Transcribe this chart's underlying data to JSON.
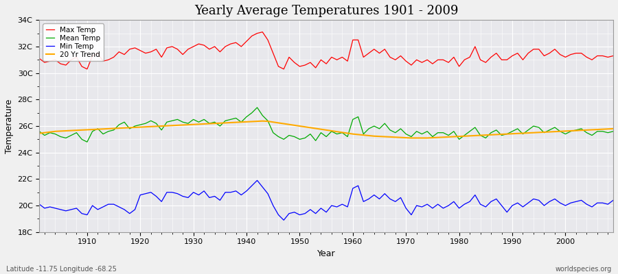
{
  "title": "Yearly Average Temperatures 1901 - 2009",
  "xlabel": "Year",
  "ylabel": "Temperature",
  "subtitle_left": "Latitude -11.75 Longitude -68.25",
  "subtitle_right": "worldspecies.org",
  "years": [
    1901,
    1902,
    1903,
    1904,
    1905,
    1906,
    1907,
    1908,
    1909,
    1910,
    1911,
    1912,
    1913,
    1914,
    1915,
    1916,
    1917,
    1918,
    1919,
    1920,
    1921,
    1922,
    1923,
    1924,
    1925,
    1926,
    1927,
    1928,
    1929,
    1930,
    1931,
    1932,
    1933,
    1934,
    1935,
    1936,
    1937,
    1938,
    1939,
    1940,
    1941,
    1942,
    1943,
    1944,
    1945,
    1946,
    1947,
    1948,
    1949,
    1950,
    1951,
    1952,
    1953,
    1954,
    1955,
    1956,
    1957,
    1958,
    1959,
    1960,
    1961,
    1962,
    1963,
    1964,
    1965,
    1966,
    1967,
    1968,
    1969,
    1970,
    1971,
    1972,
    1973,
    1974,
    1975,
    1976,
    1977,
    1978,
    1979,
    1980,
    1981,
    1982,
    1983,
    1984,
    1985,
    1986,
    1987,
    1988,
    1989,
    1990,
    1991,
    1992,
    1993,
    1994,
    1995,
    1996,
    1997,
    1998,
    1999,
    2000,
    2001,
    2002,
    2003,
    2004,
    2005,
    2006,
    2007,
    2008,
    2009
  ],
  "max_temp": [
    31.1,
    30.8,
    30.9,
    31.0,
    30.7,
    30.6,
    31.0,
    31.2,
    30.5,
    30.3,
    31.3,
    31.5,
    30.9,
    31.0,
    31.2,
    31.6,
    31.4,
    31.8,
    31.9,
    31.7,
    31.5,
    31.6,
    31.8,
    31.2,
    31.9,
    32.0,
    31.8,
    31.4,
    31.8,
    32.0,
    32.2,
    32.1,
    31.8,
    32.0,
    31.6,
    32.0,
    32.2,
    32.3,
    32.0,
    32.4,
    32.8,
    33.0,
    33.1,
    32.5,
    31.5,
    30.5,
    30.3,
    31.2,
    30.8,
    30.5,
    30.6,
    30.8,
    30.4,
    31.0,
    30.7,
    31.2,
    31.0,
    31.2,
    30.9,
    32.5,
    32.5,
    31.2,
    31.5,
    31.8,
    31.5,
    31.8,
    31.2,
    31.0,
    31.3,
    30.9,
    30.6,
    31.0,
    30.8,
    31.0,
    30.7,
    31.0,
    31.0,
    30.8,
    31.2,
    30.5,
    31.0,
    31.2,
    32.0,
    31.0,
    30.8,
    31.2,
    31.5,
    31.0,
    31.0,
    31.3,
    31.5,
    31.0,
    31.5,
    31.8,
    31.8,
    31.3,
    31.5,
    31.8,
    31.4,
    31.2,
    31.4,
    31.5,
    31.5,
    31.2,
    31.0,
    31.3,
    31.3,
    31.2,
    31.3
  ],
  "mean_temp": [
    25.6,
    25.3,
    25.5,
    25.4,
    25.2,
    25.1,
    25.3,
    25.5,
    25.0,
    24.8,
    25.6,
    25.8,
    25.4,
    25.6,
    25.7,
    26.1,
    26.3,
    25.8,
    26.0,
    26.1,
    26.2,
    26.4,
    26.2,
    25.7,
    26.3,
    26.4,
    26.5,
    26.3,
    26.2,
    26.5,
    26.3,
    26.5,
    26.2,
    26.3,
    26.0,
    26.4,
    26.5,
    26.6,
    26.3,
    26.7,
    27.0,
    27.4,
    26.8,
    26.4,
    25.5,
    25.2,
    25.0,
    25.3,
    25.2,
    25.0,
    25.1,
    25.4,
    24.9,
    25.5,
    25.2,
    25.6,
    25.4,
    25.5,
    25.2,
    26.5,
    26.7,
    25.4,
    25.8,
    26.0,
    25.8,
    26.2,
    25.7,
    25.5,
    25.8,
    25.4,
    25.2,
    25.6,
    25.4,
    25.6,
    25.2,
    25.5,
    25.5,
    25.3,
    25.6,
    25.0,
    25.3,
    25.6,
    25.9,
    25.3,
    25.1,
    25.5,
    25.7,
    25.3,
    25.4,
    25.6,
    25.8,
    25.4,
    25.7,
    26.0,
    25.9,
    25.5,
    25.7,
    25.9,
    25.6,
    25.4,
    25.6,
    25.7,
    25.8,
    25.5,
    25.3,
    25.6,
    25.6,
    25.5,
    25.6
  ],
  "min_temp": [
    20.1,
    19.8,
    19.9,
    19.8,
    19.7,
    19.6,
    19.7,
    19.8,
    19.4,
    19.3,
    20.0,
    19.7,
    19.9,
    20.1,
    20.1,
    19.9,
    19.7,
    19.4,
    19.7,
    20.8,
    20.9,
    21.0,
    20.7,
    20.3,
    21.0,
    21.0,
    20.9,
    20.7,
    20.6,
    21.0,
    20.8,
    21.1,
    20.6,
    20.7,
    20.4,
    21.0,
    21.0,
    21.1,
    20.8,
    21.1,
    21.5,
    21.9,
    21.4,
    20.9,
    20.0,
    19.3,
    18.9,
    19.4,
    19.5,
    19.3,
    19.4,
    19.7,
    19.4,
    19.8,
    19.5,
    20.0,
    19.9,
    20.1,
    19.9,
    21.3,
    21.5,
    20.3,
    20.5,
    20.8,
    20.5,
    20.9,
    20.5,
    20.3,
    20.6,
    19.8,
    19.3,
    20.0,
    19.9,
    20.1,
    19.8,
    20.1,
    19.8,
    20.0,
    20.3,
    19.8,
    20.1,
    20.3,
    20.8,
    20.1,
    19.9,
    20.3,
    20.5,
    20.0,
    19.5,
    20.0,
    20.2,
    19.9,
    20.2,
    20.5,
    20.4,
    20.0,
    20.3,
    20.5,
    20.2,
    20.0,
    20.2,
    20.3,
    20.4,
    20.1,
    19.9,
    20.2,
    20.2,
    20.1,
    20.4
  ],
  "trend": [
    25.45,
    25.5,
    25.55,
    25.6,
    25.62,
    25.64,
    25.66,
    25.68,
    25.7,
    25.72,
    25.74,
    25.76,
    25.78,
    25.8,
    25.82,
    25.84,
    25.86,
    25.88,
    25.9,
    25.92,
    25.94,
    25.96,
    25.98,
    26.0,
    26.02,
    26.04,
    26.06,
    26.08,
    26.1,
    26.12,
    26.14,
    26.16,
    26.18,
    26.2,
    26.22,
    26.24,
    26.26,
    26.28,
    26.3,
    26.32,
    26.34,
    26.36,
    26.38,
    26.36,
    26.3,
    26.24,
    26.18,
    26.12,
    26.06,
    26.0,
    25.94,
    25.88,
    25.82,
    25.76,
    25.7,
    25.64,
    25.58,
    25.52,
    25.46,
    25.4,
    25.36,
    25.32,
    25.28,
    25.24,
    25.22,
    25.2,
    25.18,
    25.16,
    25.14,
    25.12,
    25.1,
    25.1,
    25.1,
    25.1,
    25.12,
    25.14,
    25.16,
    25.18,
    25.2,
    25.22,
    25.24,
    25.26,
    25.28,
    25.3,
    25.32,
    25.34,
    25.36,
    25.38,
    25.4,
    25.42,
    25.44,
    25.46,
    25.48,
    25.5,
    25.52,
    25.54,
    25.56,
    25.58,
    25.6,
    25.62,
    25.64,
    25.66,
    25.68,
    25.7,
    25.72,
    25.74,
    25.76,
    25.78,
    25.8
  ],
  "max_color": "#ff0000",
  "mean_color": "#00aa00",
  "min_color": "#0000ff",
  "trend_color": "#ffaa00",
  "fig_bg": "#f0f0f0",
  "plot_bg": "#e8e8ec",
  "ylim": [
    18,
    34
  ],
  "yticks": [
    18,
    20,
    22,
    24,
    26,
    28,
    30,
    32,
    34
  ],
  "ytick_labels": [
    "18C",
    "20C",
    "22C",
    "24C",
    "26C",
    "28C",
    "30C",
    "32C",
    "34C"
  ],
  "xlim": [
    1901,
    2009
  ],
  "xticks": [
    1910,
    1920,
    1930,
    1940,
    1950,
    1960,
    1970,
    1980,
    1990,
    2000
  ],
  "linewidth": 0.9,
  "trend_linewidth": 1.5
}
